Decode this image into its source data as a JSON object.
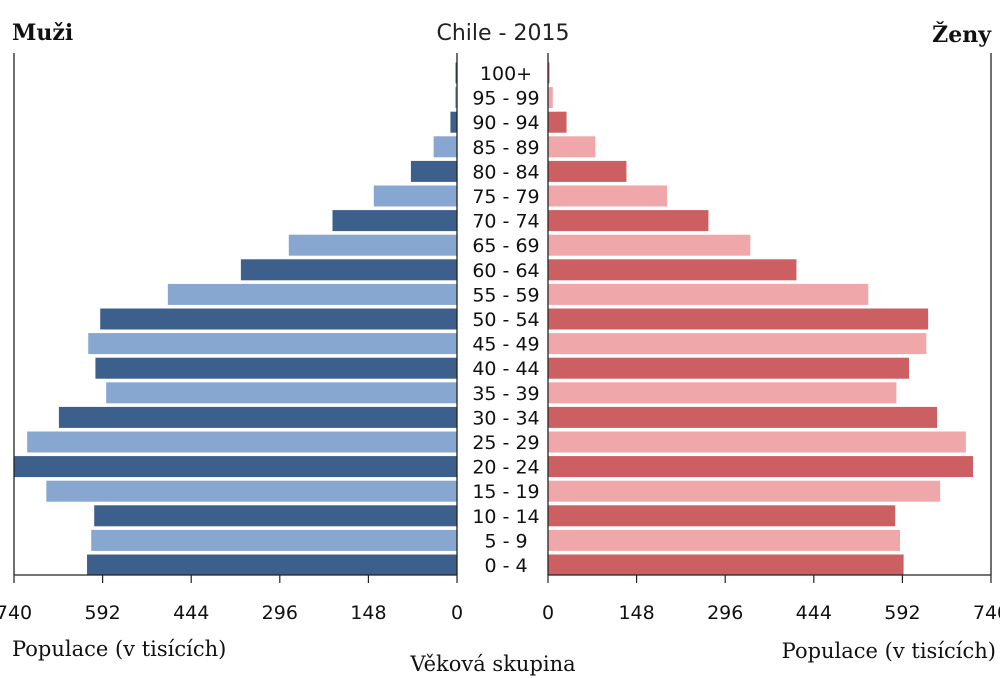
{
  "chart_data": {
    "type": "bar",
    "subtype": "population-pyramid",
    "title": "Chile - 2015",
    "left_label": "Muži",
    "right_label": "Ženy",
    "categories": [
      "0 - 4",
      "5 - 9",
      "10 - 14",
      "15 - 19",
      "20 - 24",
      "25 - 29",
      "30 - 34",
      "35 - 39",
      "40 - 44",
      "45 - 49",
      "50 - 54",
      "55 - 59",
      "60 - 64",
      "65 - 69",
      "70 - 74",
      "75 - 79",
      "80 - 84",
      "85 - 89",
      "90 - 94",
      "95 - 99",
      "100+"
    ],
    "series": [
      {
        "name": "Muži",
        "values": [
          618,
          611,
          606,
          686,
          740,
          718,
          665,
          586,
          604,
          616,
          596,
          483,
          361,
          281,
          208,
          139,
          77,
          39,
          11,
          3,
          1
        ]
      },
      {
        "name": "Ženy",
        "values": [
          594,
          588,
          580,
          655,
          710,
          698,
          650,
          582,
          603,
          632,
          635,
          535,
          415,
          338,
          268,
          199,
          131,
          79,
          31,
          8,
          2
        ]
      }
    ],
    "xlim": [
      0,
      740
    ],
    "ticks": [
      "740",
      "592",
      "444",
      "296",
      "148",
      "0"
    ],
    "ticks_right": [
      "0",
      "148",
      "296",
      "444",
      "592",
      "740"
    ],
    "xlabel_left": "Populace (v tisících)",
    "xlabel_right": "Populace (v tisících)",
    "center_label": "Věková skupina",
    "colors": {
      "male_dark": "#3d5f8c",
      "male_light": "#87a7d1",
      "female_dark": "#cc5f61",
      "female_light": "#f0a7a9"
    }
  }
}
